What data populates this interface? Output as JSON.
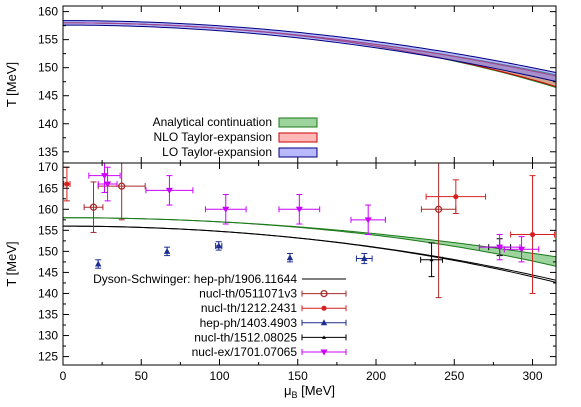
{
  "chart_data": {
    "type": "scatter",
    "title": "",
    "xlabel": "μ",
    "xlabel_sub": "B",
    "xlabel_unit": " [MeV]",
    "x_ticks": [
      0,
      50,
      100,
      150,
      200,
      250,
      300
    ],
    "xlim": [
      0,
      315
    ],
    "top_panel": {
      "ylabel": "T [MeV]",
      "ylim": [
        133,
        161
      ],
      "y_ticks": [
        135,
        140,
        145,
        150,
        155,
        160
      ],
      "legend_placement": "center-left",
      "series": [
        {
          "name": "Analytical continuation",
          "kind": "band",
          "color": "#4daf4a",
          "center_t0": 158.0,
          "curvature_k2": 0.0153,
          "k4": 0.00032,
          "quartic_spread": 0.00045
        },
        {
          "name": "NLO Taylor-expansion",
          "kind": "band",
          "color": "#ff8080",
          "center_t0": 158.0,
          "curvature_k2": 0.0153,
          "k4_low": -5e-05,
          "k4_high": 0.0007
        },
        {
          "name": "LO Taylor-expansion",
          "kind": "band",
          "color": "#8080ff",
          "center_t0": 158.0,
          "curvature_k2_low": 0.0148,
          "curvature_k2_high": 0.016,
          "t0_spread": 0.4
        }
      ]
    },
    "bottom_panel": {
      "ylabel": "T [MeV]",
      "ylim": [
        123,
        171
      ],
      "y_ticks": [
        125,
        130,
        135,
        140,
        145,
        150,
        155,
        160,
        165,
        170
      ],
      "legend_placement": "bottom-center",
      "series": [
        {
          "name": "Analytical continuation",
          "kind": "band",
          "color": "#4daf4a",
          "show_in_legend": false,
          "center_t0": 158.0,
          "curvature_k2": 0.0153,
          "k4": 0.00032,
          "quartic_spread": 0.00045
        },
        {
          "name": "Dyson-Schwinger: hep-ph/1906.11644",
          "kind": "line",
          "color": "#000000",
          "center_t0": 156.0,
          "curvature_k2": 0.0192,
          "k4_low": 0.00025,
          "k4_high": 0.00045
        },
        {
          "name": "nucl-th/0511071v3",
          "kind": "points",
          "marker": "open-circle",
          "color": "#a52a2a",
          "points": [
            [
              19.5,
              160.5,
              6,
              6
            ],
            [
              37.5,
              165.5,
              15,
              8
            ],
            [
              240,
              160,
              11,
              21
            ]
          ]
        },
        {
          "name": "nucl-th/1212.2431",
          "kind": "points",
          "marker": "filled-circle",
          "color": "#d62020",
          "points": [
            [
              2.5,
              166,
              2,
              4
            ],
            [
              251,
              163,
              19,
              4
            ],
            [
              300,
              154,
              14,
              14
            ]
          ]
        },
        {
          "name": "hep-ph/1403.4903",
          "kind": "points",
          "marker": "filled-triangle",
          "color": "#1f2f8f",
          "points": [
            [
              22.5,
              147,
              0,
              1
            ],
            [
              66.5,
              150,
              0,
              1
            ],
            [
              99.5,
              151.3,
              2,
              1
            ],
            [
              145,
              148.5,
              0,
              1
            ],
            [
              192.5,
              148.3,
              5,
              1.2
            ]
          ]
        },
        {
          "name": "nucl-th/1512.08025",
          "kind": "points",
          "marker": "filled-triangle-small",
          "color": "#000000",
          "points": [
            [
              235.5,
              148,
              7,
              4
            ],
            [
              279,
              151,
              7,
              2
            ]
          ]
        },
        {
          "name": "nucl-ex/1701.07065",
          "kind": "points",
          "marker": "filled-triangle-down",
          "color": "#cc00ff",
          "points": [
            [
              26.5,
              168,
              10,
              4
            ],
            [
              28.5,
              166,
              6,
              4
            ],
            [
              68,
              164.5,
              15,
              3.5
            ],
            [
              104,
              160,
              13,
              3.5
            ],
            [
              151,
              160,
              13,
              3.5
            ],
            [
              195,
              157.5,
              11,
              3.5
            ],
            [
              279,
              151,
              13,
              3
            ],
            [
              293,
              150.5,
              11,
              3
            ]
          ]
        }
      ]
    }
  }
}
